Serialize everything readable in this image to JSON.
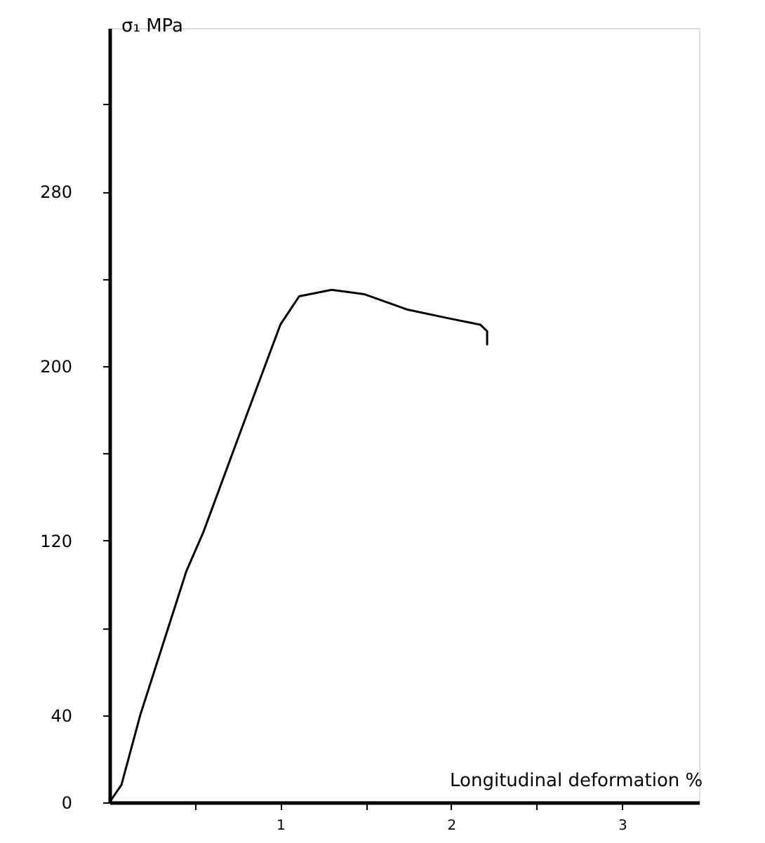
{
  "chart_data": {
    "type": "line",
    "xlabel": "Longitudinal deformation %",
    "ylabel": "σ₁  MPa",
    "x": [
      0,
      0.07,
      0.18,
      0.45,
      0.55,
      0.8,
      1.0,
      1.11,
      1.3,
      1.49,
      1.74,
      1.98,
      2.17,
      2.21,
      2.21
    ],
    "series": [
      {
        "color": "#000000",
        "values": [
          0,
          8,
          40,
          106,
          124,
          177,
          219,
          232,
          235,
          233,
          226,
          222,
          219,
          216,
          210
        ]
      }
    ],
    "xlim": [
      0,
      3.45
    ],
    "xticks": [
      {
        "value": 0.5,
        "label": null
      },
      1,
      {
        "value": 1.5,
        "label": null
      },
      2,
      {
        "value": 2.5,
        "label": null
      },
      3
    ],
    "ylim": [
      0,
      355
    ],
    "yticks": [
      0,
      40,
      {
        "value": 80,
        "label": null
      },
      120,
      {
        "value": 160,
        "label": null
      },
      200,
      {
        "value": 240,
        "label": null
      },
      280,
      {
        "value": 320,
        "label": null
      }
    ],
    "grid": false,
    "marker": "none",
    "line_style": "solid"
  }
}
